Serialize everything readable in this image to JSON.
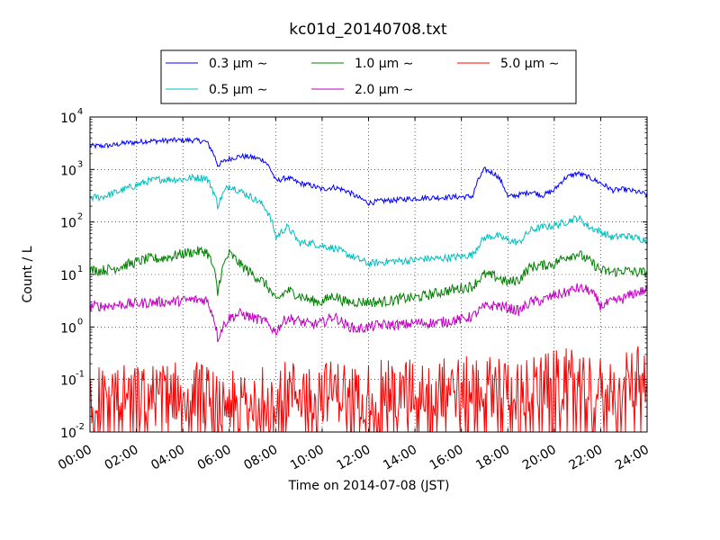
{
  "chart_data": {
    "type": "line",
    "title": "kc01d_20140708.txt",
    "xlabel": "Time on 2014-07-08 (JST)",
    "ylabel": "Count / L",
    "y_scale": "log",
    "ylim": [
      0.01,
      10000
    ],
    "xlim": [
      "00:00",
      "24:00"
    ],
    "x_ticks": [
      "00:00",
      "02:00",
      "04:00",
      "06:00",
      "08:00",
      "10:00",
      "12:00",
      "14:00",
      "16:00",
      "18:00",
      "20:00",
      "22:00",
      "24:00"
    ],
    "y_ticks": [
      {
        "base": "10",
        "exp": "-2"
      },
      {
        "base": "10",
        "exp": "-1"
      },
      {
        "base": "10",
        "exp": "0"
      },
      {
        "base": "10",
        "exp": "1"
      },
      {
        "base": "10",
        "exp": "2"
      },
      {
        "base": "10",
        "exp": "3"
      },
      {
        "base": "10",
        "exp": "4"
      }
    ],
    "grid": true,
    "legend_position": "above plot",
    "hours": [
      0,
      0.5,
      1,
      1.5,
      2,
      2.5,
      3,
      3.5,
      4,
      4.5,
      5,
      5.5,
      6,
      6.5,
      7,
      7.5,
      8,
      8.5,
      9,
      9.5,
      10,
      10.5,
      11,
      11.5,
      12,
      12.5,
      13,
      13.5,
      14,
      14.5,
      15,
      15.5,
      16,
      16.5,
      17,
      17.5,
      18,
      18.5,
      19,
      19.5,
      20,
      20.5,
      21,
      21.5,
      22,
      22.5,
      23,
      23.5,
      24
    ],
    "series": [
      {
        "name": "0.3 μm ∼",
        "color": "#0000ff",
        "noise": 0.05,
        "values": [
          2800,
          2800,
          2900,
          3200,
          3300,
          3500,
          3500,
          3600,
          3600,
          3600,
          3400,
          1200,
          1600,
          1800,
          1700,
          1500,
          600,
          700,
          550,
          500,
          420,
          460,
          400,
          300,
          230,
          250,
          260,
          270,
          280,
          290,
          290,
          300,
          300,
          310,
          1000,
          800,
          300,
          330,
          380,
          320,
          400,
          700,
          850,
          700,
          550,
          400,
          420,
          380,
          330
        ]
      },
      {
        "name": "0.5 μm ∼",
        "color": "#00bfbf",
        "noise": 0.07,
        "values": [
          290,
          300,
          350,
          420,
          500,
          600,
          650,
          650,
          650,
          700,
          700,
          200,
          500,
          380,
          290,
          200,
          50,
          80,
          40,
          40,
          35,
          32,
          25,
          20,
          16,
          17,
          18,
          18,
          19,
          20,
          20,
          21,
          22,
          24,
          50,
          55,
          45,
          40,
          70,
          80,
          85,
          100,
          120,
          80,
          65,
          50,
          55,
          50,
          45
        ]
      },
      {
        "name": "1.0 μm ∼",
        "color": "#008000",
        "noise": 0.1,
        "values": [
          12,
          12,
          13,
          15,
          17,
          20,
          20,
          22,
          25,
          27,
          28,
          4,
          25,
          15,
          10,
          7,
          3,
          5,
          4,
          3.2,
          3,
          4,
          3,
          3,
          3,
          3,
          3.2,
          3.5,
          3.6,
          4,
          4.5,
          5,
          5.5,
          6,
          10,
          9,
          7,
          8,
          14,
          15,
          16,
          22,
          25,
          18,
          12,
          11,
          12,
          11,
          11
        ]
      },
      {
        "name": "2.0 μm ∼",
        "color": "#bf00bf",
        "noise": 0.1,
        "values": [
          2.5,
          2.5,
          2.6,
          2.7,
          2.8,
          2.9,
          3,
          3,
          3.2,
          3.3,
          3.3,
          0.6,
          1.5,
          1.8,
          1.5,
          1.3,
          0.8,
          1.5,
          1.3,
          1.1,
          1.2,
          1.6,
          1.1,
          0.9,
          1,
          1.1,
          1.1,
          1.1,
          1.2,
          1.2,
          1.2,
          1.3,
          1.4,
          1.6,
          2.4,
          2.6,
          2.3,
          2,
          3,
          3.2,
          4,
          4.5,
          5.5,
          5,
          2.5,
          3,
          3.5,
          4.5,
          5
        ]
      },
      {
        "name": "5.0 μm ∼",
        "color": "#ff0000",
        "noise": 0.6,
        "values": [
          0.05,
          0.05,
          0.05,
          0.05,
          0.05,
          0.05,
          0.05,
          0.06,
          0.06,
          0.06,
          0.05,
          0.03,
          0.04,
          0.03,
          0.04,
          0.05,
          0.05,
          0.06,
          0.06,
          0.06,
          0.06,
          0.06,
          0.06,
          0.06,
          0.06,
          0.06,
          0.06,
          0.06,
          0.07,
          0.07,
          0.07,
          0.07,
          0.07,
          0.07,
          0.07,
          0.08,
          0.07,
          0.06,
          0.07,
          0.08,
          0.09,
          0.1,
          0.1,
          0.09,
          0.07,
          0.07,
          0.08,
          0.1,
          0.14
        ]
      }
    ]
  }
}
